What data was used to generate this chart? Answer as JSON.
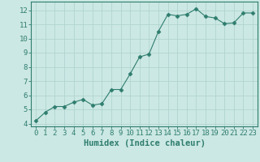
{
  "x": [
    0,
    1,
    2,
    3,
    4,
    5,
    6,
    7,
    8,
    9,
    10,
    11,
    12,
    13,
    14,
    15,
    16,
    17,
    18,
    19,
    20,
    21,
    22,
    23
  ],
  "y": [
    4.2,
    4.8,
    5.2,
    5.2,
    5.5,
    5.7,
    5.3,
    5.4,
    6.4,
    6.4,
    7.5,
    8.7,
    8.9,
    10.5,
    11.7,
    11.6,
    11.7,
    12.1,
    11.55,
    11.45,
    11.05,
    11.1,
    11.8,
    11.8
  ],
  "line_color": "#2e7d6e",
  "marker": "D",
  "marker_size": 2.5,
  "bg_color": "#cce8e4",
  "grid_color": "#b0d4cf",
  "xlabel": "Humidex (Indice chaleur)",
  "xlim": [
    -0.5,
    23.5
  ],
  "ylim": [
    3.8,
    12.6
  ],
  "yticks": [
    4,
    5,
    6,
    7,
    8,
    9,
    10,
    11,
    12
  ],
  "xticks": [
    0,
    1,
    2,
    3,
    4,
    5,
    6,
    7,
    8,
    9,
    10,
    11,
    12,
    13,
    14,
    15,
    16,
    17,
    18,
    19,
    20,
    21,
    22,
    23
  ],
  "tick_label_fontsize": 6.5,
  "xlabel_fontsize": 7.5,
  "line_color_dark": "#1a5c50",
  "axis_color": "#2e7d6e",
  "tick_color": "#2e7d6e",
  "spine_color": "#2e7d6e"
}
